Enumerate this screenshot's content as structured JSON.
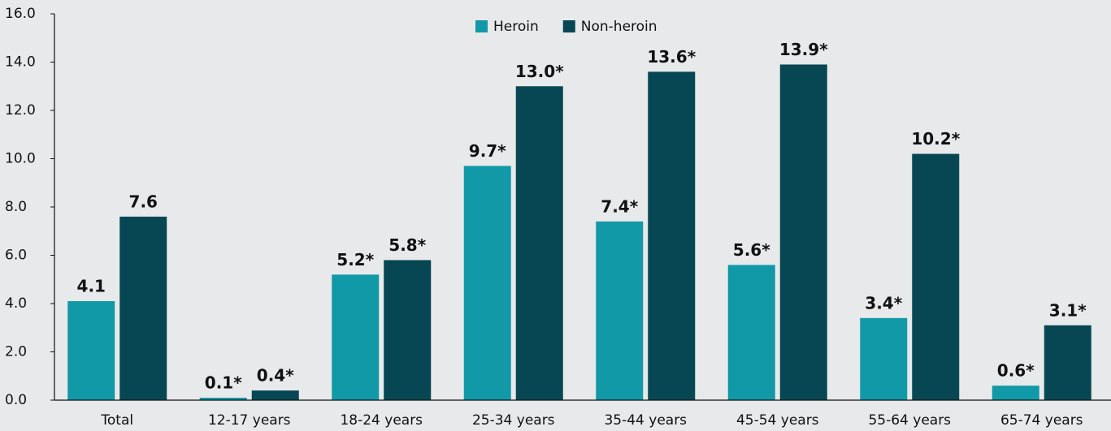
{
  "chart_data": {
    "type": "bar",
    "categories": [
      "Total",
      "12-17 years",
      "18-24 years",
      "25-34 years",
      "35-44 years",
      "45-54 years",
      "55-64 years",
      "65-74 years"
    ],
    "series": [
      {
        "name": "Heroin",
        "color": "#1299a7",
        "values": [
          4.1,
          0.1,
          5.2,
          9.7,
          7.4,
          5.6,
          3.4,
          0.6
        ],
        "value_labels": [
          "4.1",
          "0.1*",
          "5.2*",
          "9.7*",
          "7.4*",
          "5.6*",
          "3.4*",
          "0.6*"
        ]
      },
      {
        "name": "Non-heroin",
        "color": "#074753",
        "values": [
          7.6,
          0.4,
          5.8,
          13.0,
          13.6,
          13.9,
          10.2,
          3.1
        ],
        "value_labels": [
          "7.6",
          "0.4*",
          "5.8*",
          "13.0*",
          "13.6*",
          "13.9*",
          "10.2*",
          "3.1*"
        ]
      }
    ],
    "ylim": [
      0,
      16
    ],
    "yticks": [
      {
        "value": 0,
        "label": "0.0"
      },
      {
        "value": 2,
        "label": "2.0"
      },
      {
        "value": 4,
        "label": "4.0"
      },
      {
        "value": 6,
        "label": "6.0"
      },
      {
        "value": 8,
        "label": "8.0"
      },
      {
        "value": 10,
        "label": "10.0"
      },
      {
        "value": 12,
        "label": "12.0"
      },
      {
        "value": 14,
        "label": "14.0"
      },
      {
        "value": 16,
        "label": "16.0"
      }
    ],
    "legend": "top"
  }
}
